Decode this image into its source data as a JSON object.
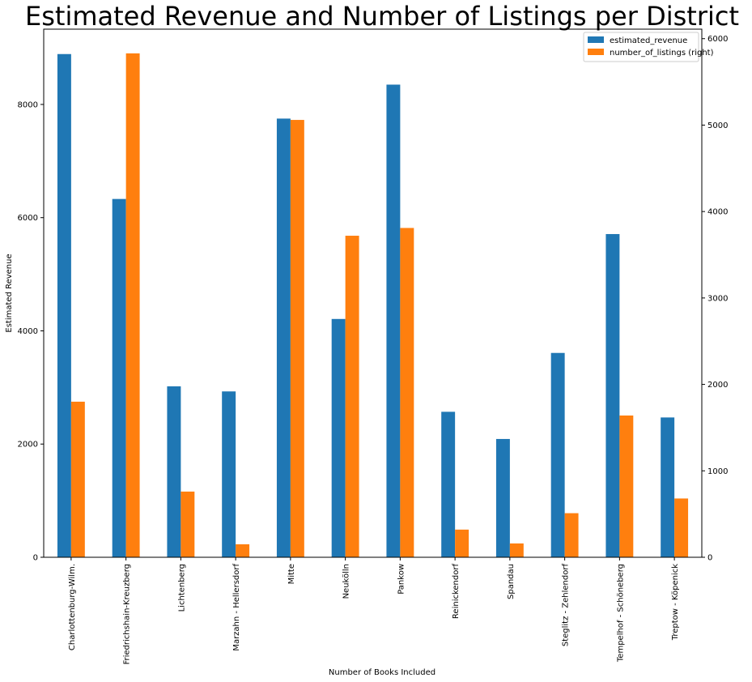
{
  "chart_data": {
    "type": "bar",
    "title": "Estimated Revenue and Number of Listings per District",
    "xlabel": "Number of Books Included",
    "ylabel": "Estimated Revenue",
    "ylabel_right": "",
    "categories": [
      "Charlottenburg-Wilm.",
      "Friedrichshain-Kreuzberg",
      "Lichtenberg",
      "Marzahn - Hellersdorf",
      "Mitte",
      "Neukölln",
      "Pankow",
      "Reinickendorf",
      "Spandau",
      "Steglitz - Zehlendorf",
      "Tempelhof - Schöneberg",
      "Treptow - Köpenick"
    ],
    "series": [
      {
        "name": "estimated_revenue",
        "axis": "left",
        "color": "#1f77b4",
        "values": [
          8890,
          6330,
          3020,
          2930,
          7750,
          4210,
          8350,
          2570,
          2090,
          3610,
          5710,
          2470
        ]
      },
      {
        "name": "number_of_listings (right)",
        "axis": "right",
        "color": "#ff7f0e",
        "values": [
          1800,
          5830,
          760,
          150,
          5060,
          3720,
          3810,
          320,
          160,
          510,
          1640,
          680
        ]
      }
    ],
    "ylim": [
      0,
      9330
    ],
    "ylim_right": [
      0,
      6110
    ],
    "yticks": [
      0,
      2000,
      4000,
      6000,
      8000
    ],
    "yticks_right": [
      0,
      1000,
      2000,
      3000,
      4000,
      5000,
      6000
    ],
    "grid": false,
    "legend_position": "top-right"
  }
}
